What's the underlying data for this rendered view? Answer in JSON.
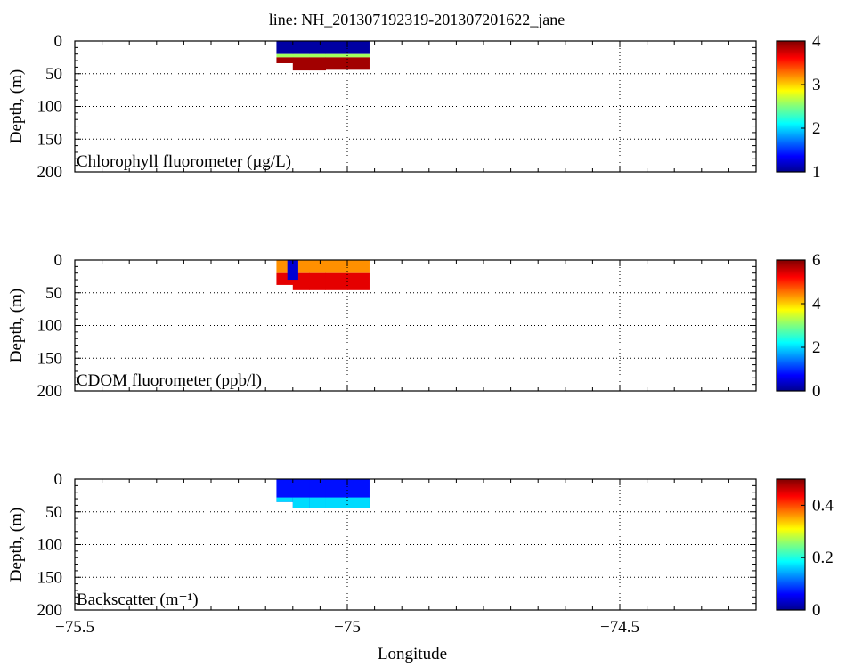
{
  "title": "line: NH_201307192319-201307201622_jane",
  "xlabel": "Longitude",
  "ylabel": "Depth, (m)",
  "x_ticks": [
    "−75.5",
    "−75",
    "−74.5"
  ],
  "y_ticks": [
    "0",
    "50",
    "100",
    "150",
    "200"
  ],
  "chart_data": [
    {
      "type": "heatmap",
      "label": "Chlorophyll fluorometer (µg/L)",
      "xlim": [
        -75.5,
        -74.25
      ],
      "ylim": [
        200,
        0
      ],
      "colorbar_range": [
        1,
        4
      ],
      "colorbar_ticks": [
        "4",
        "3",
        "2",
        "1"
      ],
      "colormap": "jet",
      "grid": true,
      "section": {
        "lon_range": [
          -75.13,
          -74.96
        ],
        "profiles": [
          {
            "lon": -75.13,
            "max_depth": 32
          },
          {
            "lon": -75.1,
            "max_depth": 34
          },
          {
            "lon": -75.07,
            "max_depth": 45
          },
          {
            "lon": -75.04,
            "max_depth": 42
          },
          {
            "lon": -75.0,
            "max_depth": 44
          },
          {
            "lon": -74.96,
            "max_depth": 40
          }
        ],
        "layers": [
          {
            "depth_range": [
              0,
              20
            ],
            "value": 1.1
          },
          {
            "depth_range": [
              20,
              25
            ],
            "value": 2.6
          },
          {
            "depth_range": [
              25,
              45
            ],
            "value": 3.9
          }
        ]
      }
    },
    {
      "type": "heatmap",
      "label": "CDOM fluorometer (ppb/l)",
      "xlim": [
        -75.5,
        -74.25
      ],
      "ylim": [
        200,
        0
      ],
      "colorbar_range": [
        0,
        6
      ],
      "colorbar_ticks": [
        "6",
        "4",
        "2",
        "0"
      ],
      "colormap": "jet",
      "grid": true,
      "section": {
        "lon_range": [
          -75.13,
          -74.96
        ],
        "profiles": [
          {
            "lon": -75.13,
            "max_depth": 36
          },
          {
            "lon": -75.1,
            "max_depth": 38
          },
          {
            "lon": -75.07,
            "max_depth": 46
          },
          {
            "lon": -75.04,
            "max_depth": 44
          },
          {
            "lon": -75.0,
            "max_depth": 46
          },
          {
            "lon": -74.96,
            "max_depth": 42
          }
        ],
        "layers": [
          {
            "depth_range": [
              0,
              20
            ],
            "value": 4.4
          },
          {
            "depth_range": [
              20,
              46
            ],
            "value": 5.4
          }
        ],
        "patches": [
          {
            "lon_range": [
              -75.11,
              -75.09
            ],
            "depth_range": [
              0,
              30
            ],
            "value": 0.5
          }
        ]
      }
    },
    {
      "type": "heatmap",
      "label": "Backscatter (m⁻¹)",
      "xlim": [
        -75.5,
        -74.25
      ],
      "ylim": [
        200,
        0
      ],
      "colorbar_range": [
        0,
        0.5
      ],
      "colorbar_ticks": [
        "0.4",
        "0.2",
        "0"
      ],
      "colormap": "jet",
      "grid": true,
      "section": {
        "lon_range": [
          -75.13,
          -74.96
        ],
        "profiles": [
          {
            "lon": -75.13,
            "max_depth": 34
          },
          {
            "lon": -75.1,
            "max_depth": 35
          },
          {
            "lon": -75.07,
            "max_depth": 44
          },
          {
            "lon": -75.04,
            "max_depth": 42
          },
          {
            "lon": -75.0,
            "max_depth": 44
          },
          {
            "lon": -74.96,
            "max_depth": 40
          }
        ],
        "layers": [
          {
            "depth_range": [
              0,
              44
            ],
            "value": 0.07
          },
          {
            "depth_range": [
              28,
              44
            ],
            "value": 0.17
          }
        ]
      }
    }
  ]
}
